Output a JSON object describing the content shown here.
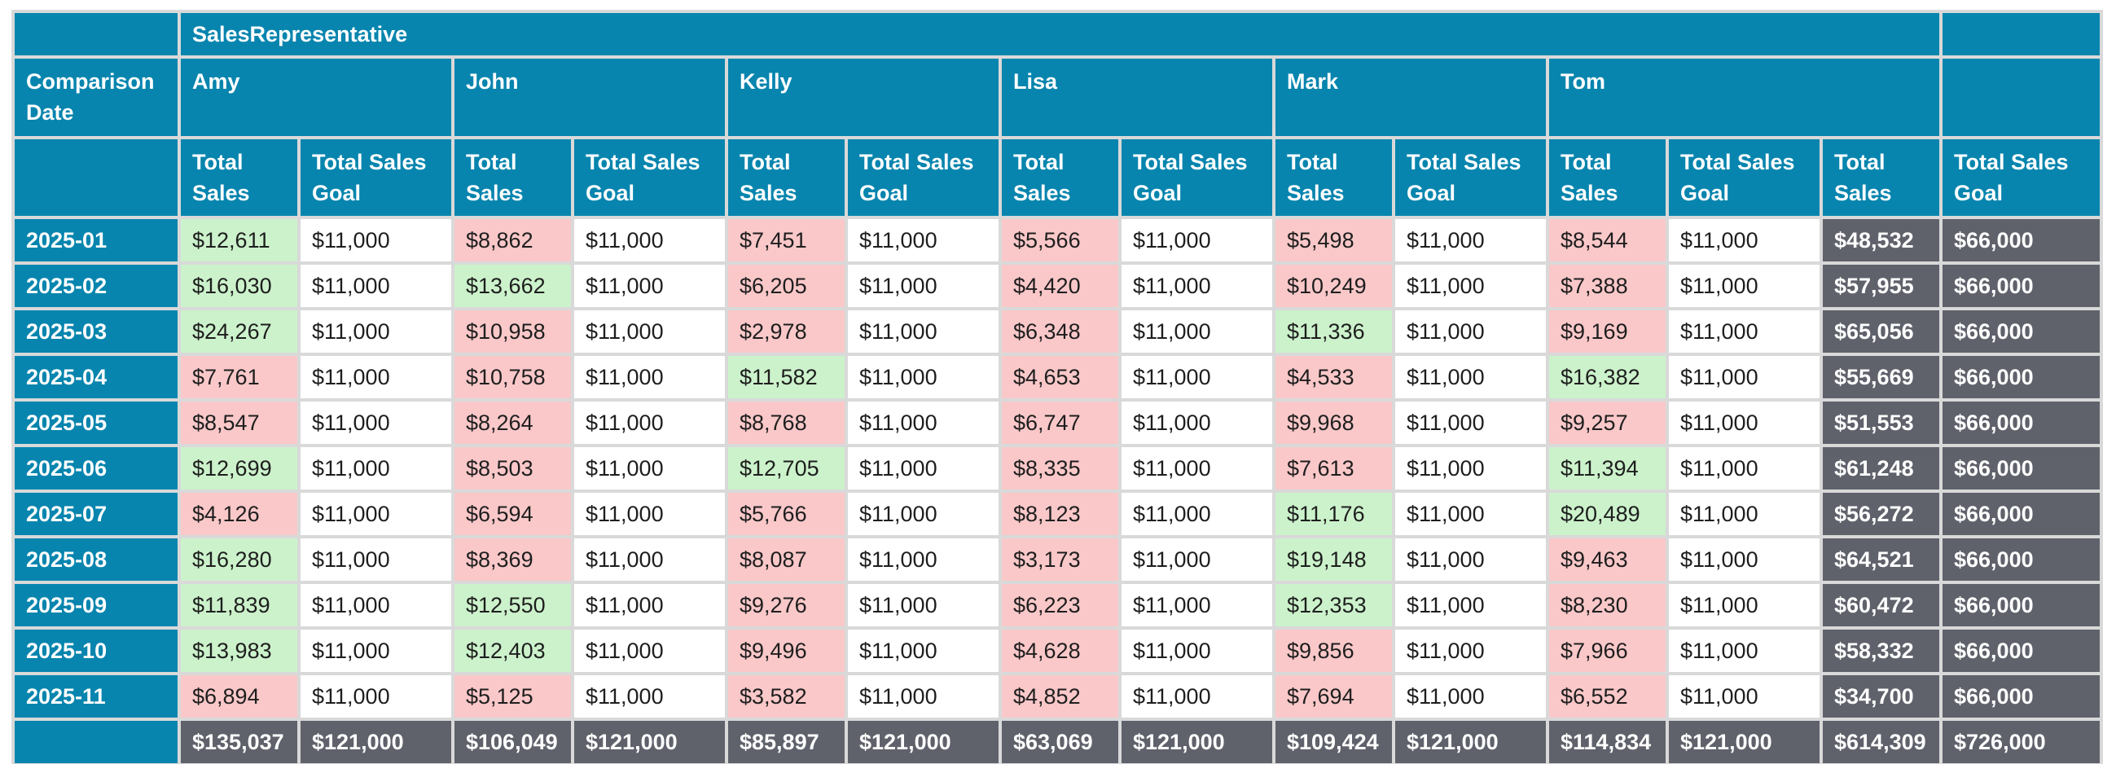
{
  "table": {
    "group_header": "SalesRepresentative",
    "row_header": "Comparison Date",
    "metric_sales_label": "Total Sales",
    "metric_goal_label": "Total Sales Goal",
    "reps": [
      "Amy",
      "John",
      "Kelly",
      "Lisa",
      "Mark",
      "Tom"
    ],
    "goal_cell_text": "$11,000",
    "row_total_goal_text": "$66,000",
    "goal_value": 11000,
    "colors": {
      "header_blue": "#0785ae",
      "totals_gray": "#5f626b",
      "above_goal_green": "#ccf2cb",
      "below_goal_red": "#fac8c9",
      "grid_line": "#d9d9d9",
      "value_text": "#1e1e1e"
    },
    "rows": [
      {
        "date": "2025-01",
        "sales": [
          "$12,611",
          "$8,862",
          "$7,451",
          "$5,566",
          "$5,498",
          "$8,544"
        ],
        "total_sales": "$48,532"
      },
      {
        "date": "2025-02",
        "sales": [
          "$16,030",
          "$13,662",
          "$6,205",
          "$4,420",
          "$10,249",
          "$7,388"
        ],
        "total_sales": "$57,955"
      },
      {
        "date": "2025-03",
        "sales": [
          "$24,267",
          "$10,958",
          "$2,978",
          "$6,348",
          "$11,336",
          "$9,169"
        ],
        "total_sales": "$65,056"
      },
      {
        "date": "2025-04",
        "sales": [
          "$7,761",
          "$10,758",
          "$11,582",
          "$4,653",
          "$4,533",
          "$16,382"
        ],
        "total_sales": "$55,669"
      },
      {
        "date": "2025-05",
        "sales": [
          "$8,547",
          "$8,264",
          "$8,768",
          "$6,747",
          "$9,968",
          "$9,257"
        ],
        "total_sales": "$51,553"
      },
      {
        "date": "2025-06",
        "sales": [
          "$12,699",
          "$8,503",
          "$12,705",
          "$8,335",
          "$7,613",
          "$11,394"
        ],
        "total_sales": "$61,248"
      },
      {
        "date": "2025-07",
        "sales": [
          "$4,126",
          "$6,594",
          "$5,766",
          "$8,123",
          "$11,176",
          "$20,489"
        ],
        "total_sales": "$56,272"
      },
      {
        "date": "2025-08",
        "sales": [
          "$16,280",
          "$8,369",
          "$8,087",
          "$3,173",
          "$19,148",
          "$9,463"
        ],
        "total_sales": "$64,521"
      },
      {
        "date": "2025-09",
        "sales": [
          "$11,839",
          "$12,550",
          "$9,276",
          "$6,223",
          "$12,353",
          "$8,230"
        ],
        "total_sales": "$60,472"
      },
      {
        "date": "2025-10",
        "sales": [
          "$13,983",
          "$12,403",
          "$9,496",
          "$4,628",
          "$9,856",
          "$7,966"
        ],
        "total_sales": "$58,332"
      },
      {
        "date": "2025-11",
        "sales": [
          "$6,894",
          "$5,125",
          "$3,582",
          "$4,852",
          "$7,694",
          "$6,552"
        ],
        "total_sales": "$34,700"
      }
    ],
    "footer": {
      "rep_sales": [
        "$135,037",
        "$106,049",
        "$85,897",
        "$63,069",
        "$109,424",
        "$114,834"
      ],
      "rep_goal_text": "$121,000",
      "grand_sales": "$614,309",
      "grand_goal": "$726,000"
    }
  },
  "chart_data": {
    "type": "table",
    "title": "SalesRepresentative",
    "row_field": "Comparison Date",
    "column_fields": [
      "Total Sales",
      "Total Sales Goal"
    ],
    "dates": [
      "2025-01",
      "2025-02",
      "2025-03",
      "2025-04",
      "2025-05",
      "2025-06",
      "2025-07",
      "2025-08",
      "2025-09",
      "2025-10",
      "2025-11"
    ],
    "monthly_goal_per_rep": 11000,
    "series": [
      {
        "name": "Amy",
        "total_sales": [
          12611,
          16030,
          24267,
          7761,
          8547,
          12699,
          4126,
          16280,
          11839,
          13983,
          6894
        ],
        "rep_total": 135037
      },
      {
        "name": "John",
        "total_sales": [
          8862,
          13662,
          10958,
          10758,
          8264,
          8503,
          6594,
          8369,
          12550,
          12403,
          5125
        ],
        "rep_total": 106049
      },
      {
        "name": "Kelly",
        "total_sales": [
          7451,
          6205,
          2978,
          11582,
          8768,
          12705,
          5766,
          8087,
          9276,
          9496,
          3582
        ],
        "rep_total": 85897
      },
      {
        "name": "Lisa",
        "total_sales": [
          5566,
          4420,
          6348,
          4653,
          6747,
          8335,
          8123,
          3173,
          6223,
          4628,
          4852
        ],
        "rep_total": 63069
      },
      {
        "name": "Mark",
        "total_sales": [
          5498,
          10249,
          11336,
          4533,
          9968,
          7613,
          11176,
          19148,
          12353,
          9856,
          7694
        ],
        "rep_total": 109424
      },
      {
        "name": "Tom",
        "total_sales": [
          8544,
          7388,
          9169,
          16382,
          9257,
          11394,
          20489,
          9463,
          8230,
          7966,
          6552
        ],
        "rep_total": 114834
      }
    ],
    "row_totals_sales": [
      48532,
      57955,
      65056,
      55669,
      51553,
      61248,
      56272,
      64521,
      60472,
      58332,
      34700
    ],
    "row_total_goal": 66000,
    "rep_total_goal": 121000,
    "grand_total_sales": 614309,
    "grand_total_goal": 726000,
    "conditional_format": "sales cell green when >= monthly goal, red when below"
  }
}
